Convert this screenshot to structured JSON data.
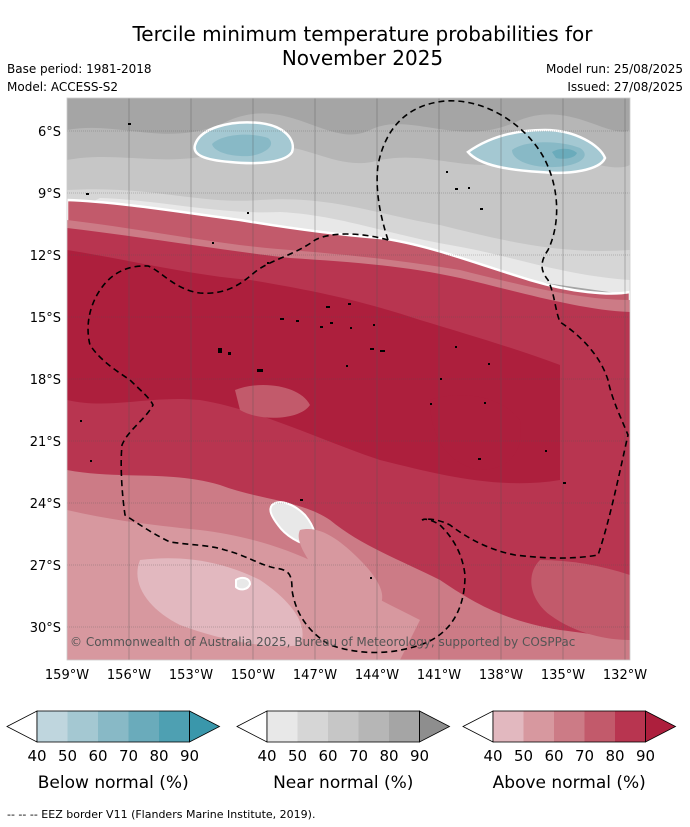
{
  "title_line1": "Tercile minimum temperature probabilities for",
  "title_line2": "November 2025",
  "base_period": "Base period: 1981-2018",
  "model": "Model: ACCESS-S2",
  "model_run": "Model run: 25/08/2025",
  "issued": "Issued: 27/08/2025",
  "copyright": "© Commonwealth of Australia 2025, Bureau of Meteorology, supported by COSPPac",
  "footer": "--  --  -- EEZ border V11 (Flanders Marine Institute, 2019).",
  "lat_labels": [
    "6°S",
    "9°S",
    "12°S",
    "15°S",
    "18°S",
    "21°S",
    "24°S",
    "27°S",
    "30°S"
  ],
  "lon_labels": [
    "159°W",
    "156°W",
    "153°W",
    "150°W",
    "147°W",
    "144°W",
    "141°W",
    "138°W",
    "135°W",
    "132°W"
  ],
  "colorbars": [
    {
      "title": "Below normal (%)",
      "ticks": [
        "40",
        "50",
        "60",
        "70",
        "80",
        "90"
      ],
      "colors": [
        "#bfd6de",
        "#a4c8d2",
        "#88b9c6",
        "#6aabbb",
        "#4ea0b2",
        "#3a97ab"
      ]
    },
    {
      "title": "Near normal (%)",
      "ticks": [
        "40",
        "50",
        "60",
        "70",
        "80",
        "90"
      ],
      "colors": [
        "#e8e8e8",
        "#d6d6d6",
        "#c6c6c6",
        "#b6b6b6",
        "#a5a5a5",
        "#8e8e8e"
      ]
    },
    {
      "title": "Above normal (%)",
      "ticks": [
        "40",
        "50",
        "60",
        "70",
        "80",
        "90"
      ],
      "colors": [
        "#e2b8bf",
        "#d7989f",
        "#cc7b86",
        "#c25a6b",
        "#b83550",
        "#ad1f3d"
      ]
    }
  ]
}
